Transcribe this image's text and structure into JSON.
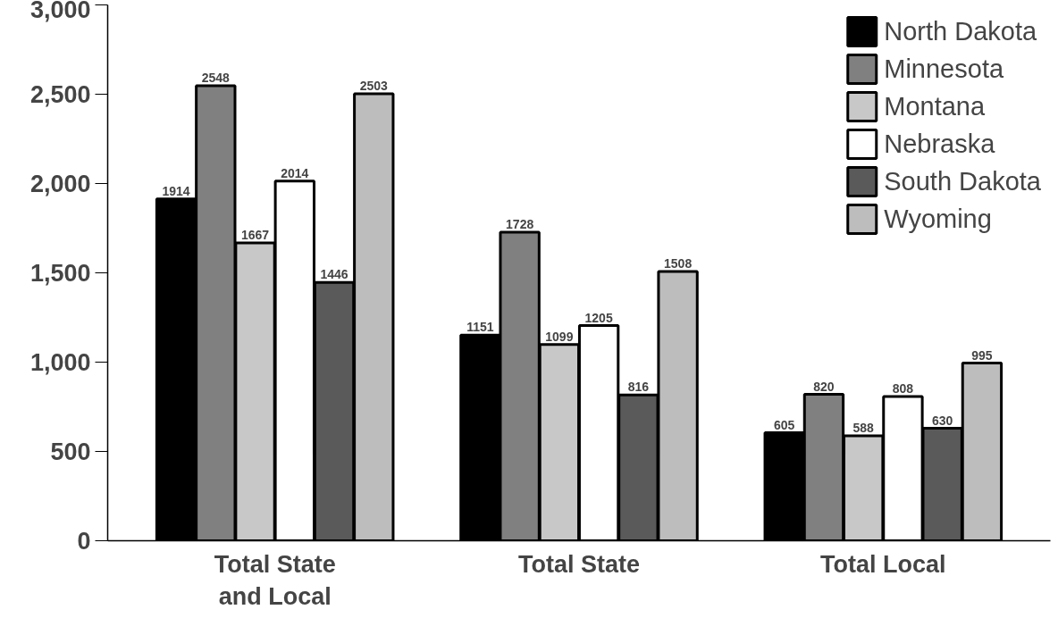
{
  "chart_data": {
    "type": "bar",
    "categories": [
      "Total State\nand Local",
      "Total State",
      "Total Local"
    ],
    "series": [
      {
        "name": "North Dakota",
        "color": "#000000",
        "values": [
          1914,
          1151,
          605
        ]
      },
      {
        "name": "Minnesota",
        "color": "#808080",
        "values": [
          2548,
          1728,
          820
        ]
      },
      {
        "name": "Montana",
        "color": "#c8c8c8",
        "values": [
          1667,
          1099,
          588
        ]
      },
      {
        "name": "Nebraska",
        "color": "#ffffff",
        "values": [
          2014,
          1205,
          808
        ]
      },
      {
        "name": "South Dakota",
        "color": "#5a5a5a",
        "values": [
          1446,
          816,
          630
        ]
      },
      {
        "name": "Wyoming",
        "color": "#bdbdbd",
        "values": [
          2503,
          1508,
          995
        ]
      }
    ],
    "ylim": [
      0,
      3000
    ],
    "yticks": [
      0,
      500,
      {
        "value": 1000,
        "label": "1,000"
      },
      {
        "value": 1500,
        "label": "1,500"
      },
      {
        "value": 2000,
        "label": "2,000"
      },
      {
        "value": 2500,
        "label": "2,500"
      },
      {
        "value": 3000,
        "label": "3,000"
      }
    ],
    "data_labels": true,
    "legend": "top right",
    "grid": false
  }
}
